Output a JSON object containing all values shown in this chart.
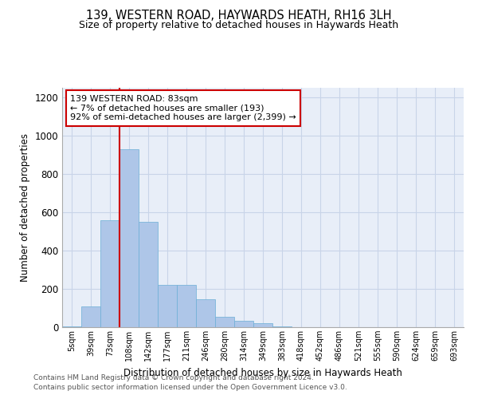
{
  "title1": "139, WESTERN ROAD, HAYWARDS HEATH, RH16 3LH",
  "title2": "Size of property relative to detached houses in Haywards Heath",
  "xlabel": "Distribution of detached houses by size in Haywards Heath",
  "ylabel": "Number of detached properties",
  "footer1": "Contains HM Land Registry data © Crown copyright and database right 2024.",
  "footer2": "Contains public sector information licensed under the Open Government Licence v3.0.",
  "annotation_title": "139 WESTERN ROAD: 83sqm",
  "annotation_line1": "← 7% of detached houses are smaller (193)",
  "annotation_line2": "92% of semi-detached houses are larger (2,399) →",
  "bar_color": "#aec6e8",
  "bar_edge_color": "#6baed6",
  "vline_color": "#cc0000",
  "annotation_box_color": "#ffffff",
  "annotation_box_edge": "#cc0000",
  "categories": [
    "5sqm",
    "39sqm",
    "73sqm",
    "108sqm",
    "142sqm",
    "177sqm",
    "211sqm",
    "246sqm",
    "280sqm",
    "314sqm",
    "349sqm",
    "383sqm",
    "418sqm",
    "452sqm",
    "486sqm",
    "521sqm",
    "555sqm",
    "590sqm",
    "624sqm",
    "659sqm",
    "693sqm"
  ],
  "values": [
    5,
    110,
    560,
    930,
    550,
    220,
    220,
    145,
    55,
    35,
    22,
    5,
    0,
    0,
    0,
    0,
    0,
    0,
    0,
    0,
    0
  ],
  "ylim": [
    0,
    1250
  ],
  "yticks": [
    0,
    200,
    400,
    600,
    800,
    1000,
    1200
  ],
  "vline_x": 2.5,
  "grid_color": "#c8d4e8",
  "bg_color": "#e8eef8"
}
